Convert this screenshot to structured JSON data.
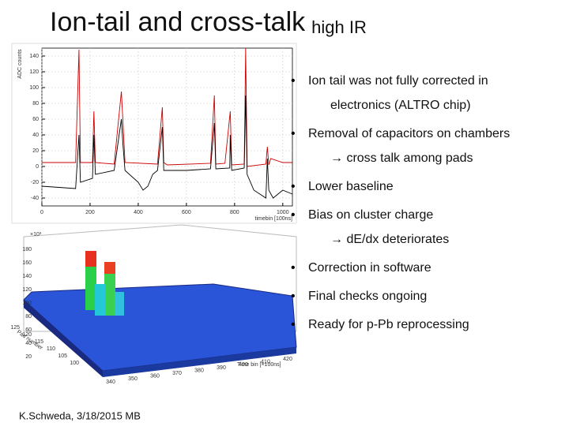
{
  "title": "Ion-tail and cross-talk",
  "title_suffix": "high IR",
  "bullets": [
    {
      "text": "Ion tail was not fully corrected in",
      "cont": "electronics (ALTRO chip)"
    },
    {
      "text": "Removal of capacitors on chambers",
      "cont": "→ cross talk among pads"
    },
    {
      "text": "Lower baseline"
    },
    {
      "text": "Bias on cluster charge",
      "cont": "→ dE/dx deteriorates"
    },
    {
      "text": "Correction in software"
    },
    {
      "text": "Final checks ongoing"
    },
    {
      "text": "Ready for p-Pb reprocessing"
    }
  ],
  "footer": "K.Schweda, 3/18/2015 MB",
  "chart_data": {
    "type": "line",
    "ylabel": "ADC counts",
    "xlabel": "timebin [100ns]",
    "xlim": [
      0,
      1040
    ],
    "ylim": [
      -50,
      150
    ],
    "xticks": [
      0,
      200,
      400,
      600,
      800,
      1000
    ],
    "yticks": [
      -40,
      -20,
      0,
      20,
      40,
      60,
      80,
      100,
      120,
      140
    ],
    "grid": true,
    "series": [
      {
        "color": "#cc0000",
        "x": [
          0,
          140,
          154,
          160,
          210,
          216,
          222,
          300,
          330,
          336,
          345,
          480,
          500,
          506,
          520,
          700,
          716,
          722,
          760,
          782,
          788,
          840,
          846,
          852,
          930,
          936,
          942,
          950,
          1000,
          1040
        ],
        "values": [
          5,
          5,
          148,
          5,
          5,
          70,
          5,
          3,
          95,
          60,
          5,
          3,
          75,
          5,
          2,
          4,
          90,
          3,
          4,
          70,
          2,
          3,
          150,
          0,
          3,
          25,
          2,
          10,
          5,
          5
        ]
      },
      {
        "color": "#000000",
        "x": [
          0,
          140,
          154,
          160,
          210,
          216,
          222,
          300,
          330,
          336,
          345,
          400,
          420,
          440,
          460,
          480,
          500,
          506,
          600,
          700,
          716,
          722,
          780,
          782,
          788,
          840,
          846,
          852,
          880,
          930,
          936,
          942,
          960,
          1000,
          1040
        ],
        "values": [
          -25,
          -28,
          40,
          -20,
          -15,
          40,
          -10,
          -5,
          60,
          30,
          -5,
          -20,
          -30,
          -25,
          -10,
          -5,
          50,
          -5,
          -5,
          -3,
          55,
          -3,
          -2,
          40,
          -5,
          -2,
          90,
          -10,
          -30,
          -40,
          10,
          -30,
          -40,
          -30,
          -35
        ]
      }
    ]
  },
  "lego_plot": {
    "z_exponent": "×10³",
    "zticks": [
      20,
      40,
      60,
      80,
      100,
      120,
      140,
      160,
      180
    ],
    "pad_label": "Pad number",
    "pad_ticks": [
      100,
      105,
      110,
      115,
      120,
      125
    ],
    "time_label": "Time bin [×100ns]",
    "time_ticks": [
      340,
      350,
      360,
      370,
      380,
      390,
      400,
      410,
      420
    ]
  }
}
